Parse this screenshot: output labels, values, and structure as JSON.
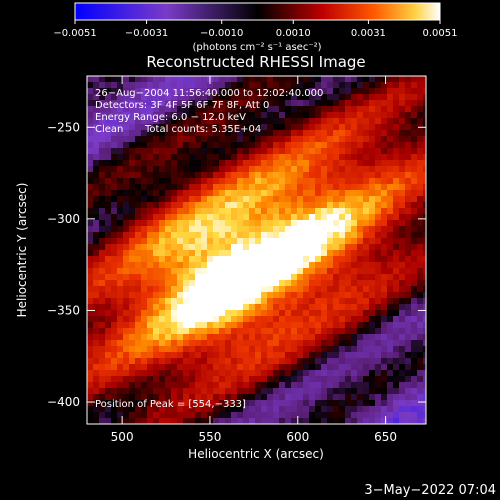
{
  "chart_data": {
    "type": "heatmap",
    "title": "Reconstructed RHESSI Image",
    "xlabel": "Heliocentric X (arcsec)",
    "ylabel": "Heliocentric Y (arcsec)",
    "xlim": [
      480,
      673
    ],
    "ylim": [
      -412,
      -222
    ],
    "x_ticks": [
      500,
      550,
      600,
      650
    ],
    "y_ticks": [
      -250,
      -300,
      -350,
      -400
    ],
    "x_tick_labels": [
      "500",
      "550",
      "600",
      "650"
    ],
    "y_tick_labels": [
      "−250",
      "−300",
      "−350",
      "−400"
    ],
    "colorbar": {
      "range": [
        -0.0051,
        0.0051
      ],
      "ticks": [
        -0.0051,
        -0.0031,
        -0.001,
        0.001,
        0.0031,
        0.0051
      ],
      "tick_labels": [
        "−0.0051",
        "−0.0031",
        "−0.0010",
        "0.0010",
        "0.0031",
        "0.0051"
      ],
      "unit_label": "(photons cm⁻² s⁻¹ asec⁻²)"
    },
    "annotations": {
      "time_range": "26−Aug−2004 11:56:40.000 to 12:02:40.000",
      "detectors": "Detectors: 3F 4F 5F 6F 7F 8F, Att 0",
      "energy_range": "Energy Range: 6.0 − 12.0 keV",
      "clean": "Clean",
      "total_counts": "Total counts: 5.35E+04",
      "peak": "Position of Peak = [554,−333]"
    },
    "peak": [
      554,
      -333
    ],
    "footer_date": "3−May−2022 07:04"
  }
}
